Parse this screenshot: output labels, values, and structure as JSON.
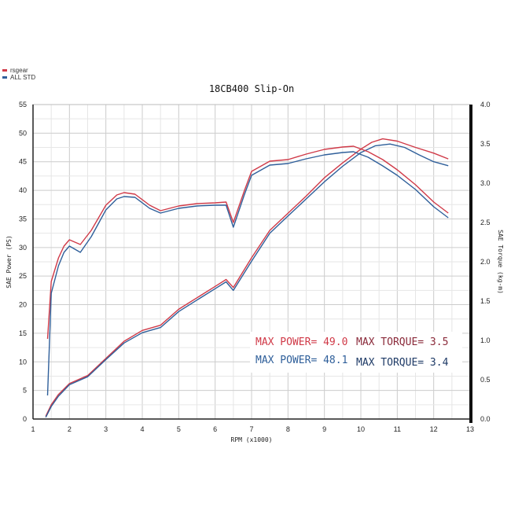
{
  "chart_data": {
    "type": "line",
    "title": "18CB400 Slip-On",
    "xlabel": "RPM (x1000)",
    "ylabel": "SAE Power (PS)",
    "y2label": "SAE Torque (kg-m)",
    "xlim": [
      1,
      13
    ],
    "ylim": [
      0,
      55
    ],
    "y2lim": [
      0,
      4.0
    ],
    "xticks": [
      "1",
      "2",
      "3",
      "4",
      "5",
      "6",
      "7",
      "8",
      "9",
      "10",
      "11",
      "12",
      "13"
    ],
    "yticks": [
      "0",
      "5",
      "10",
      "15",
      "20",
      "25",
      "30",
      "35",
      "40",
      "45",
      "50",
      "55"
    ],
    "y2ticks": [
      "0.0",
      "0.5",
      "1.0",
      "1.5",
      "2.0",
      "2.5",
      "3.0",
      "3.5",
      "4.0"
    ],
    "grid": true,
    "legend_placement": "top-left",
    "legend": [
      {
        "name": "rsgear",
        "color": "#d03a48"
      },
      {
        "name": "ALL STD",
        "color": "#2f5f9a"
      }
    ],
    "series": [
      {
        "name": "rsgear",
        "quantity": "power",
        "axis": "left",
        "color": "#d03a48",
        "x": [
          1.35,
          1.5,
          1.7,
          2,
          2.5,
          3,
          3.5,
          4,
          4.5,
          5,
          5.5,
          6,
          6.3,
          6.5,
          7,
          7.5,
          8,
          8.5,
          9,
          9.5,
          10,
          10.3,
          10.6,
          11,
          11.5,
          12,
          12.4
        ],
        "y": [
          0.5,
          2.5,
          4.3,
          6.2,
          7.6,
          10.6,
          13.6,
          15.5,
          16.4,
          19.2,
          21.2,
          23.2,
          24.4,
          23.0,
          28.2,
          33.0,
          36.0,
          39.0,
          42.2,
          44.8,
          47.2,
          48.4,
          49.0,
          48.6,
          47.5,
          46.5,
          45.5
        ]
      },
      {
        "name": "ALL STD",
        "quantity": "power",
        "axis": "left",
        "color": "#2f5f9a",
        "x": [
          1.35,
          1.5,
          1.7,
          2,
          2.5,
          3,
          3.5,
          4,
          4.5,
          5,
          5.5,
          6,
          6.3,
          6.5,
          7,
          7.5,
          8,
          8.5,
          9,
          9.5,
          10,
          10.4,
          10.8,
          11.2,
          11.6,
          12,
          12.4
        ],
        "y": [
          0.3,
          2.2,
          4.0,
          6.0,
          7.4,
          10.4,
          13.3,
          15.1,
          16.0,
          18.8,
          20.8,
          22.8,
          24.0,
          22.5,
          27.6,
          32.5,
          35.5,
          38.5,
          41.5,
          44.2,
          46.6,
          47.8,
          48.1,
          47.5,
          46.2,
          45.0,
          44.3
        ]
      },
      {
        "name": "rsgear",
        "quantity": "torque",
        "axis": "right",
        "color": "#d03a48",
        "x": [
          1.4,
          1.5,
          1.7,
          1.85,
          2,
          2.3,
          2.6,
          3,
          3.3,
          3.5,
          3.8,
          4.2,
          4.5,
          5,
          5.5,
          6,
          6.3,
          6.5,
          6.8,
          7,
          7.5,
          8,
          8.5,
          9,
          9.5,
          9.8,
          10.2,
          10.6,
          11,
          11.5,
          12,
          12.4
        ],
        "y": [
          1.02,
          1.75,
          2.05,
          2.2,
          2.28,
          2.22,
          2.4,
          2.72,
          2.85,
          2.88,
          2.86,
          2.72,
          2.65,
          2.71,
          2.74,
          2.75,
          2.76,
          2.5,
          2.9,
          3.15,
          3.28,
          3.3,
          3.37,
          3.43,
          3.46,
          3.47,
          3.4,
          3.3,
          3.17,
          2.98,
          2.76,
          2.62
        ]
      },
      {
        "name": "ALL STD",
        "quantity": "torque",
        "axis": "right",
        "color": "#2f5f9a",
        "x": [
          1.4,
          1.5,
          1.7,
          1.85,
          2,
          2.3,
          2.6,
          3,
          3.3,
          3.5,
          3.8,
          4.2,
          4.5,
          5,
          5.5,
          6,
          6.3,
          6.5,
          6.8,
          7,
          7.5,
          8,
          8.5,
          9,
          9.5,
          9.8,
          10.2,
          10.6,
          11,
          11.5,
          12,
          12.4
        ],
        "y": [
          0.3,
          1.6,
          1.95,
          2.12,
          2.2,
          2.12,
          2.32,
          2.66,
          2.8,
          2.83,
          2.82,
          2.68,
          2.62,
          2.68,
          2.71,
          2.72,
          2.72,
          2.44,
          2.85,
          3.1,
          3.23,
          3.25,
          3.31,
          3.36,
          3.39,
          3.4,
          3.33,
          3.22,
          3.1,
          2.92,
          2.7,
          2.56
        ]
      }
    ],
    "annotations": [
      {
        "text": "MAX POWER= 49.0",
        "color": "#d03a48"
      },
      {
        "text": "MAX POWER= 48.1",
        "color": "#2f5f9a"
      },
      {
        "text": "MAX TORQUE= 3.5",
        "color": "#8a2a3a"
      },
      {
        "text": "MAX TORQUE= 3.4",
        "color": "#1e3a66"
      }
    ]
  }
}
